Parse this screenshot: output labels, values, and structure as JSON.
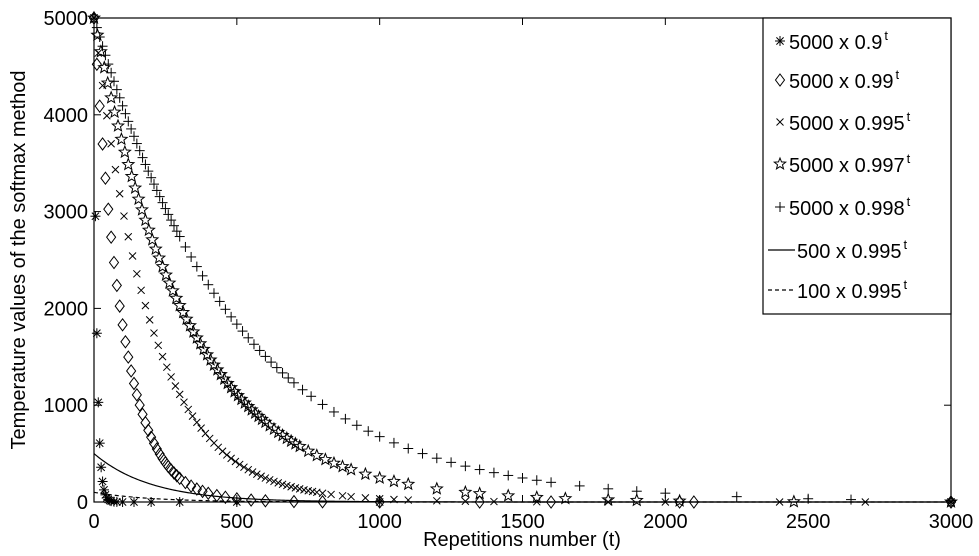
{
  "chart_data": {
    "type": "scatter",
    "title": "",
    "xlabel": "Repetitions number (t)",
    "ylabel": "Temperature values of the softmax method",
    "xlim": [
      0,
      3000
    ],
    "ylim": [
      0,
      5000
    ],
    "x_ticks": [
      "0",
      "500",
      "1000",
      "1500",
      "2000",
      "2500",
      "3000"
    ],
    "y_ticks": [
      "0",
      "1000",
      "2000",
      "3000",
      "4000",
      "5000"
    ],
    "legend_position": "top-right",
    "grid": false,
    "series": [
      {
        "name": "5000 x 0.9",
        "exponent": "t",
        "initial": 5000,
        "base": 0.9,
        "marker": "asterisk",
        "x_points": [
          0,
          5,
          10,
          15,
          20,
          25,
          30,
          35,
          40,
          45,
          50,
          55,
          60,
          70,
          80,
          100,
          140,
          200,
          300,
          500,
          1000,
          3000
        ]
      },
      {
        "name": "5000 x 0.99",
        "exponent": "t",
        "initial": 5000,
        "base": 0.99,
        "marker": "diamond",
        "x_points": [
          0,
          10,
          20,
          30,
          40,
          50,
          60,
          70,
          80,
          90,
          100,
          110,
          120,
          130,
          140,
          150,
          160,
          170,
          180,
          190,
          200,
          210,
          220,
          230,
          240,
          250,
          260,
          270,
          280,
          290,
          300,
          320,
          340,
          360,
          380,
          400,
          430,
          460,
          500,
          550,
          600,
          700,
          800,
          1000,
          1350,
          1600,
          2050,
          2100,
          3000
        ]
      },
      {
        "name": "5000 x 0.995",
        "exponent": "t",
        "initial": 5000,
        "base": 0.995,
        "marker": "cross",
        "x_points": [
          0,
          15,
          30,
          45,
          60,
          75,
          90,
          105,
          120,
          135,
          150,
          165,
          180,
          195,
          210,
          225,
          240,
          255,
          270,
          285,
          300,
          315,
          330,
          345,
          360,
          375,
          390,
          405,
          420,
          435,
          450,
          465,
          480,
          495,
          510,
          525,
          540,
          555,
          570,
          585,
          600,
          615,
          630,
          645,
          660,
          675,
          690,
          705,
          720,
          735,
          750,
          765,
          780,
          800,
          830,
          870,
          900,
          950,
          1000,
          1050,
          1100,
          1200,
          1300,
          1400,
          1550,
          1800,
          2000,
          2400,
          2700,
          3000
        ]
      },
      {
        "name": "5000 x 0.997",
        "exponent": "t",
        "initial": 5000,
        "base": 0.997,
        "marker": "star",
        "x_points": [
          0,
          12,
          24,
          36,
          48,
          60,
          72,
          84,
          96,
          108,
          120,
          132,
          144,
          156,
          168,
          180,
          192,
          204,
          216,
          228,
          240,
          252,
          264,
          276,
          288,
          300,
          312,
          324,
          336,
          348,
          360,
          372,
          384,
          396,
          408,
          420,
          432,
          444,
          456,
          468,
          480,
          492,
          504,
          516,
          528,
          540,
          552,
          564,
          576,
          588,
          600,
          615,
          630,
          645,
          660,
          675,
          690,
          705,
          720,
          750,
          780,
          810,
          840,
          870,
          900,
          950,
          1000,
          1050,
          1100,
          1200,
          1300,
          1350,
          1450,
          1550,
          1650,
          1800,
          1900,
          2050,
          2450,
          3000
        ]
      },
      {
        "name": "5000 x 0.998",
        "exponent": "t",
        "initial": 5000,
        "base": 0.998,
        "marker": "plus",
        "x_points": [
          0,
          10,
          20,
          30,
          40,
          50,
          60,
          70,
          80,
          90,
          100,
          110,
          120,
          130,
          140,
          150,
          160,
          170,
          180,
          190,
          200,
          210,
          220,
          230,
          240,
          250,
          260,
          270,
          280,
          290,
          300,
          320,
          340,
          360,
          380,
          400,
          420,
          440,
          460,
          480,
          500,
          520,
          540,
          560,
          580,
          600,
          620,
          640,
          660,
          680,
          700,
          730,
          760,
          800,
          840,
          880,
          920,
          960,
          1000,
          1050,
          1100,
          1150,
          1200,
          1250,
          1300,
          1350,
          1400,
          1450,
          1500,
          1550,
          1600,
          1700,
          1800,
          1900,
          2000,
          2250,
          2500,
          2650,
          3000
        ]
      },
      {
        "name": "500 x 0.995",
        "exponent": "t",
        "initial": 500,
        "base": 0.995,
        "style": "solid"
      },
      {
        "name": "100 x 0.995",
        "exponent": "t",
        "initial": 100,
        "base": 0.995,
        "style": "dashed"
      }
    ]
  }
}
